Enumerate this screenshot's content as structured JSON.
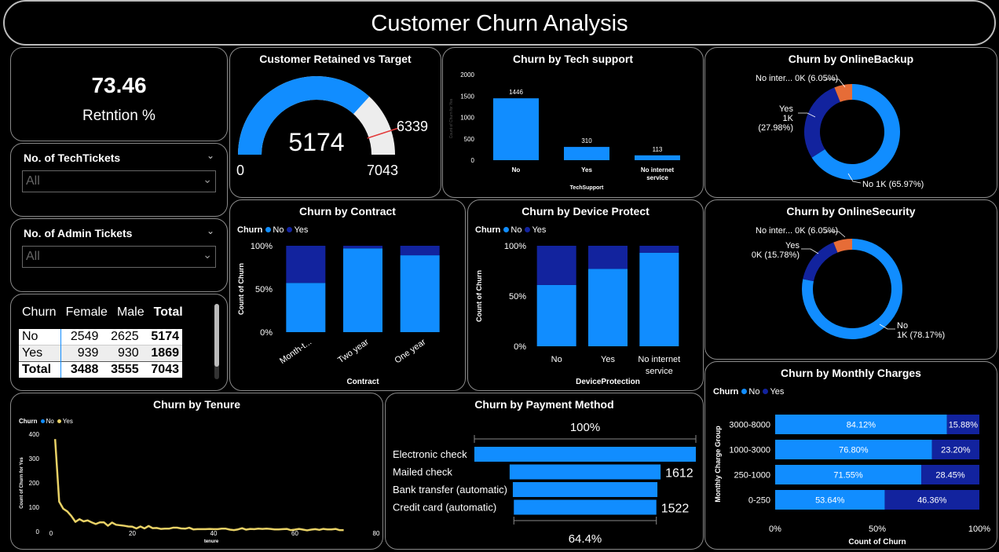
{
  "page_title": "Customer Churn Analysis",
  "colors": {
    "no": "#118DFF",
    "yes": "#12239E",
    "other": "#E66C37",
    "tenure_line": "#E8D166",
    "gauge_bg": "#EDEDED",
    "target": "#E33A3A"
  },
  "kpi": {
    "value": "73.46",
    "label": "Retntion %"
  },
  "slicers": [
    {
      "title": "No. of TechTickets",
      "value": "All"
    },
    {
      "title": "No. of Admin Tickets",
      "value": "All"
    }
  ],
  "matrix": {
    "headers": [
      "Churn",
      "Female",
      "Male",
      "Total"
    ],
    "rows": [
      [
        "No",
        "2549",
        "2625",
        "5174"
      ],
      [
        "Yes",
        "939",
        "930",
        "1869"
      ],
      [
        "Total",
        "3488",
        "3555",
        "7043"
      ]
    ]
  },
  "gauge": {
    "title": "Customer Retained vs Target",
    "value": "5174",
    "min": "0",
    "max": "7043",
    "target": "6339"
  },
  "tech_support": {
    "title": "Churn by Tech support",
    "xlabel": "TechSupport",
    "ylabel": "Count of Churn for Yes",
    "yticks": [
      "2000",
      "1500",
      "1000",
      "500",
      "0"
    ],
    "categories": [
      "No",
      "Yes",
      "No internet service"
    ],
    "values": [
      1446,
      310,
      113
    ],
    "value_labels": [
      "1446",
      "310",
      "113"
    ]
  },
  "online_backup": {
    "title": "Churn by OnlineBackup",
    "labels": [
      "No inter... 0K (6.05%)",
      "Yes 1K (27.98%)",
      "No 1K (65.97%)"
    ]
  },
  "online_security": {
    "title": "Churn by OnlineSecurity",
    "labels": [
      "No inter... 0K (6.05%)",
      "Yes 0K (15.78%)",
      "No 1K (78.17%)"
    ]
  },
  "contract": {
    "title": "Churn by Contract",
    "legend": {
      "title": "Churn",
      "no": "No",
      "yes": "Yes"
    },
    "xlabel": "Contract",
    "ylabel": "Count of Churn",
    "yticks": [
      "100%",
      "50%",
      "0%"
    ],
    "categories": [
      "Month-t...",
      "Two year",
      "One year"
    ]
  },
  "device": {
    "title": "Churn by Device Protect",
    "legend": {
      "title": "Churn",
      "no": "No",
      "yes": "Yes"
    },
    "xlabel": "DeviceProtection",
    "ylabel": "Count of Churn",
    "yticks": [
      "100%",
      "50%",
      "0%"
    ],
    "categories": [
      "No",
      "Yes",
      "No internet service"
    ]
  },
  "monthly": {
    "title": "Churn by Monthly Charges",
    "legend": {
      "title": "Churn",
      "no": "No",
      "yes": "Yes"
    },
    "xlabel": "Count of Churn",
    "ylabel": "Monthly Charge Group",
    "xticks": [
      "0%",
      "50%",
      "100%"
    ],
    "categories": [
      "3000-8000",
      "1000-3000",
      "250-1000",
      "0-250"
    ],
    "no_labels": [
      "84.12%",
      "76.80%",
      "71.55%",
      "53.64%"
    ],
    "yes_labels": [
      "15.88%",
      "23.20%",
      "28.45%",
      "46.36%"
    ]
  },
  "tenure": {
    "title": "Churn by Tenure",
    "legend": {
      "title": "Churn",
      "no": "No",
      "yes": "Yes"
    },
    "xlabel": "tenure",
    "ylabel": "Count of Churn for Yes",
    "xticks": [
      "0",
      "20",
      "40",
      "60",
      "80"
    ],
    "yticks": [
      "400",
      "300",
      "200",
      "100",
      "0"
    ]
  },
  "payment": {
    "title": "Churn by Payment Method",
    "top_label": "100%",
    "bottom_label": "64.4%",
    "categories": [
      "Electronic check",
      "Mailed check",
      "Bank transfer (automatic)",
      "Credit card (automatic)"
    ],
    "value_labels": [
      "",
      "1612",
      "",
      "1522"
    ]
  },
  "chart_data": [
    {
      "type": "bar",
      "title": "Churn by Tech support",
      "categories": [
        "No",
        "Yes",
        "No internet service"
      ],
      "values": [
        1446,
        310,
        113
      ],
      "xlabel": "TechSupport",
      "ylabel": "Count of Churn for Yes",
      "ylim": [
        0,
        2000
      ]
    },
    {
      "type": "pie",
      "title": "Churn by OnlineBackup",
      "categories": [
        "No internet service",
        "Yes",
        "No"
      ],
      "values": [
        6.05,
        27.98,
        65.97
      ]
    },
    {
      "type": "pie",
      "title": "Churn by OnlineSecurity",
      "categories": [
        "No internet service",
        "Yes",
        "No"
      ],
      "values": [
        6.05,
        15.78,
        78.17
      ]
    },
    {
      "type": "bar",
      "title": "Churn by Contract",
      "categories": [
        "Month-t...",
        "Two year",
        "One year"
      ],
      "series": [
        {
          "name": "No",
          "values": [
            57,
            97,
            89
          ]
        },
        {
          "name": "Yes",
          "values": [
            43,
            3,
            11
          ]
        }
      ],
      "xlabel": "Contract",
      "ylabel": "Count of Churn",
      "ylim": [
        0,
        100
      ]
    },
    {
      "type": "bar",
      "title": "Churn by Device Protect",
      "categories": [
        "No",
        "Yes",
        "No internet service"
      ],
      "series": [
        {
          "name": "No",
          "values": [
            61,
            77,
            93
          ]
        },
        {
          "name": "Yes",
          "values": [
            39,
            23,
            7
          ]
        }
      ],
      "xlabel": "DeviceProtection",
      "ylabel": "Count of Churn",
      "ylim": [
        0,
        100
      ]
    },
    {
      "type": "bar",
      "title": "Churn by Monthly Charges",
      "categories": [
        "3000-8000",
        "1000-3000",
        "250-1000",
        "0-250"
      ],
      "series": [
        {
          "name": "No",
          "values": [
            84.12,
            76.8,
            71.55,
            53.64
          ]
        },
        {
          "name": "Yes",
          "values": [
            15.88,
            23.2,
            28.45,
            46.36
          ]
        }
      ],
      "xlabel": "Count of Churn",
      "ylabel": "Monthly Charge Group",
      "xlim": [
        0,
        100
      ]
    },
    {
      "type": "line",
      "title": "Churn by Tenure",
      "x": [
        1,
        2,
        3,
        4,
        5,
        6,
        7,
        8,
        9,
        10,
        11,
        12,
        13,
        14,
        15,
        16,
        17,
        18,
        19,
        20,
        21,
        22,
        23,
        24,
        25,
        26,
        27,
        28,
        29,
        30,
        31,
        32,
        33,
        34,
        35,
        36,
        37,
        38,
        39,
        40,
        41,
        42,
        43,
        44,
        45,
        46,
        47,
        48,
        49,
        50,
        51,
        52,
        53,
        54,
        55,
        56,
        57,
        58,
        59,
        60,
        61,
        62,
        63,
        64,
        65,
        66,
        67,
        68,
        69,
        70,
        71,
        72
      ],
      "series": [
        {
          "name": "Yes",
          "values": [
            380,
            123,
            94,
            83,
            64,
            40,
            51,
            42,
            46,
            38,
            31,
            38,
            38,
            24,
            37,
            28,
            26,
            24,
            21,
            20,
            13,
            21,
            13,
            23,
            14,
            15,
            11,
            12,
            12,
            16,
            16,
            13,
            12,
            16,
            9,
            10,
            10,
            10,
            11,
            10,
            10,
            12,
            12,
            8,
            6,
            9,
            14,
            8,
            11,
            10,
            12,
            11,
            12,
            11,
            9,
            9,
            10,
            11,
            6,
            8,
            11,
            8,
            5,
            8,
            10,
            7,
            11,
            9,
            9,
            11,
            6,
            6
          ]
        }
      ],
      "xlabel": "tenure",
      "ylabel": "Count of Churn for Yes",
      "xlim": [
        0,
        80
      ],
      "ylim": [
        0,
        400
      ]
    },
    {
      "type": "bar",
      "title": "Churn by Payment Method",
      "categories": [
        "Electronic check",
        "Mailed check",
        "Bank transfer (automatic)",
        "Credit card (automatic)"
      ],
      "values": [
        2365,
        1612,
        1544,
        1522
      ]
    }
  ]
}
